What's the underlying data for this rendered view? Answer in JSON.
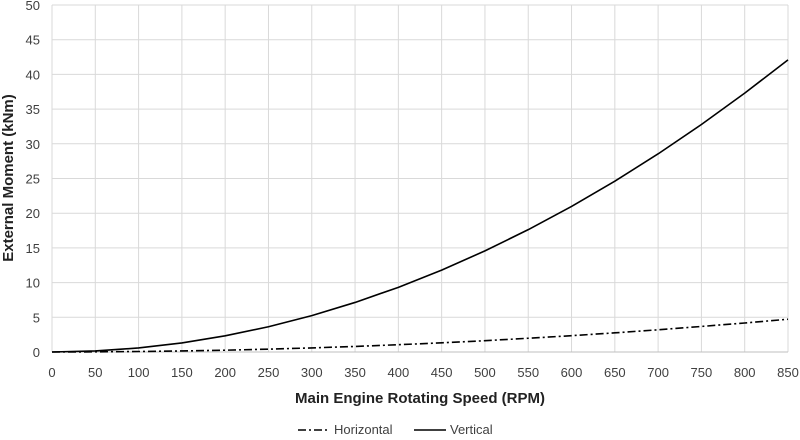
{
  "chart_data": {
    "type": "line",
    "title": "",
    "xlabel": "Main Engine Rotating Speed (RPM)",
    "ylabel": "External Moment (kNm)",
    "xlim": [
      0,
      850
    ],
    "ylim": [
      0,
      50
    ],
    "x_ticks": [
      0,
      50,
      100,
      150,
      200,
      250,
      300,
      350,
      400,
      450,
      500,
      550,
      600,
      650,
      700,
      750,
      800,
      850
    ],
    "y_ticks": [
      0,
      5,
      10,
      15,
      20,
      25,
      30,
      35,
      40,
      45,
      50
    ],
    "grid": true,
    "legend_position": "bottom",
    "x": [
      0,
      50,
      100,
      150,
      200,
      250,
      300,
      350,
      400,
      450,
      500,
      550,
      600,
      650,
      700,
      750,
      800,
      850
    ],
    "series": [
      {
        "name": "Horizontal",
        "style": "dash-dot",
        "color": "#000000",
        "values": [
          0,
          0.02,
          0.07,
          0.15,
          0.26,
          0.41,
          0.59,
          0.8,
          1.05,
          1.32,
          1.63,
          1.98,
          2.35,
          2.76,
          3.2,
          3.68,
          4.18,
          4.72
        ]
      },
      {
        "name": "Vertical",
        "style": "solid",
        "color": "#000000",
        "values": [
          0,
          0.15,
          0.58,
          1.31,
          2.33,
          3.64,
          5.24,
          7.14,
          9.32,
          11.8,
          14.57,
          17.63,
          20.98,
          24.62,
          28.55,
          32.78,
          37.3,
          42.1
        ]
      }
    ]
  }
}
